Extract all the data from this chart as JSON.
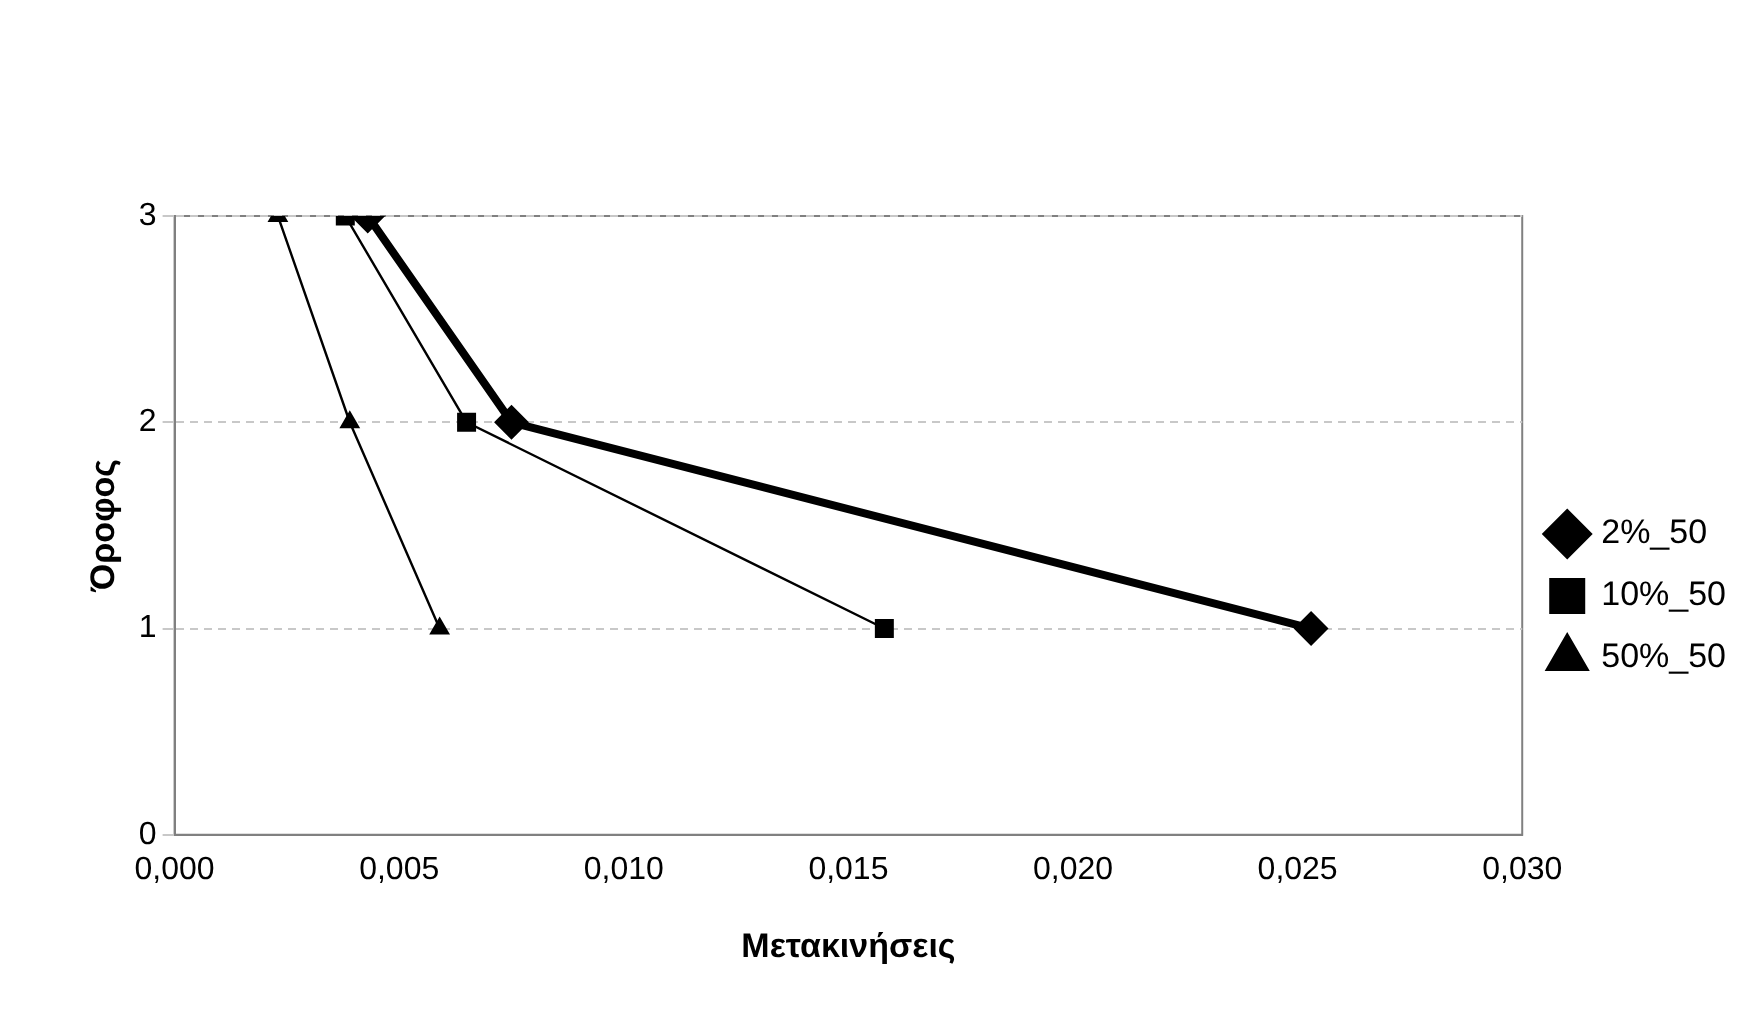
{
  "chart_data": {
    "type": "line",
    "xlabel": "Μετακινήσεις",
    "ylabel": "Όροφος",
    "series": [
      {
        "name": "2%_50",
        "color": "#000000",
        "marker": "diamond",
        "x": [
          0.0043,
          0.0075,
          0.0253
        ],
        "values": [
          3,
          2,
          1
        ]
      },
      {
        "name": "10%_50",
        "color": "#000000",
        "marker": "square",
        "x": [
          0.0038,
          0.0065,
          0.0158
        ],
        "values": [
          3,
          2,
          1
        ]
      },
      {
        "name": "50%_50",
        "color": "#000000",
        "marker": "triangle",
        "x": [
          0.0023,
          0.0039,
          0.0059
        ],
        "values": [
          3,
          2,
          1
        ]
      }
    ],
    "xlim": [
      0,
      0.03
    ],
    "xticks": [
      {
        "value": 0,
        "label": "0,000"
      },
      {
        "value": 0.005,
        "label": "0,005"
      },
      {
        "value": 0.01,
        "label": "0,010"
      },
      {
        "value": 0.015,
        "label": "0,015"
      },
      {
        "value": 0.02,
        "label": "0,020"
      },
      {
        "value": 0.025,
        "label": "0,025"
      },
      {
        "value": 0.03,
        "label": "0,030"
      }
    ],
    "ylim": [
      0,
      3
    ],
    "yticks": [
      0,
      1,
      2,
      3
    ],
    "grid": "y",
    "legend": "right",
    "line_style": "solid"
  }
}
